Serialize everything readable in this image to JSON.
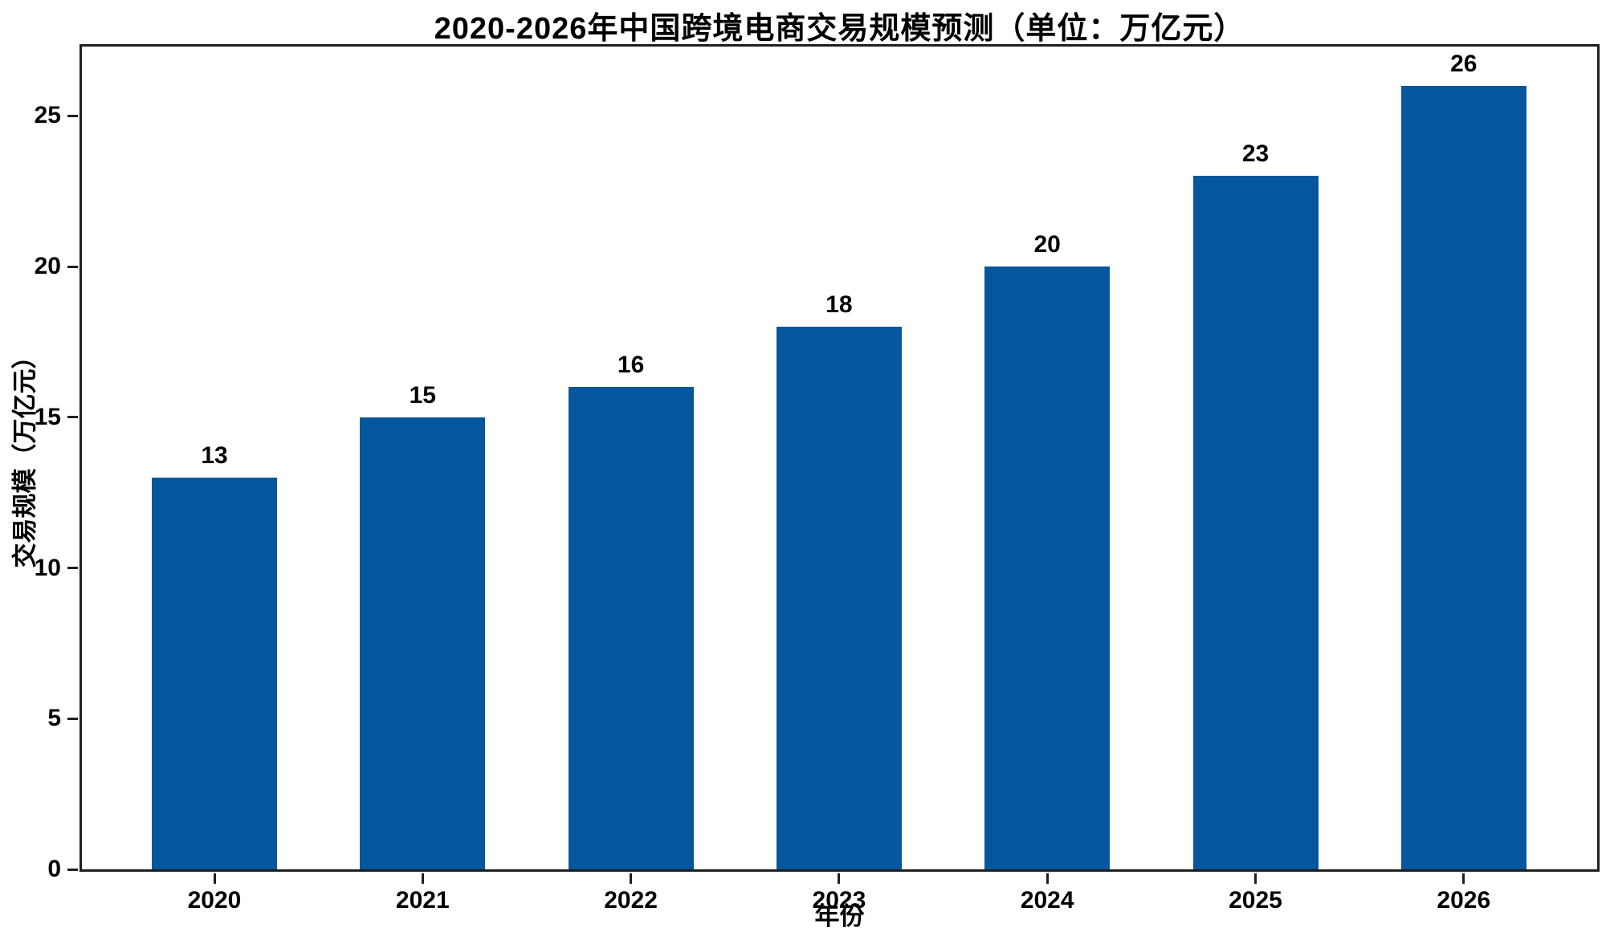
{
  "chart_data": {
    "type": "bar",
    "title": "2020-2026年中国跨境电商交易规模预测（单位：万亿元）",
    "categories": [
      "2020",
      "2021",
      "2022",
      "2023",
      "2024",
      "2025",
      "2026"
    ],
    "values": [
      13,
      15,
      16,
      18,
      20,
      23,
      26
    ],
    "bar_labels": [
      "13",
      "15",
      "16",
      "18",
      "20",
      "23",
      "26"
    ],
    "xlabel": "年份",
    "ylabel": "交易规模（万亿元）",
    "ylim": [
      0,
      27.3
    ],
    "yticks": [
      0,
      5,
      10,
      15,
      20,
      25
    ],
    "bar_color": "#04569d",
    "axis_color": "#1f1f1f",
    "text_color": "#000000",
    "background_color": "#ffffff",
    "grid": false,
    "legend_position": "none"
  }
}
